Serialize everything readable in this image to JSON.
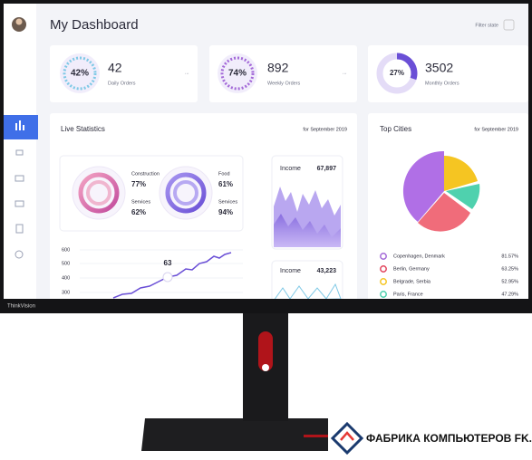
{
  "brand": "ThinkVision",
  "watermark": "ФАБРИКА КОМПЬЮТЕРОВ FK.BY",
  "header": {
    "title": "My Dashboard",
    "filter": "Filter state"
  },
  "cards": [
    {
      "percent": "42%",
      "value": "42",
      "label": "Daily Orders",
      "menu": "..."
    },
    {
      "percent": "74%",
      "value": "892",
      "label": "Weekly Orders",
      "menu": "..."
    },
    {
      "percent": "27%",
      "value": "3502",
      "label": "Monthly Orders"
    }
  ],
  "live_statistics": {
    "title": "Live Statistics",
    "period": "for September 2019",
    "rings": [
      {
        "items": [
          {
            "label": "Construction",
            "value": "77%"
          },
          {
            "label": "Services",
            "value": "62%"
          }
        ]
      },
      {
        "items": [
          {
            "label": "Food",
            "value": "61%"
          },
          {
            "label": "Services",
            "value": "94%"
          }
        ]
      }
    ],
    "line_chart": {
      "yticks": [
        "600",
        "500",
        "400",
        "300"
      ],
      "point_label": "63"
    },
    "income": [
      {
        "label": "Income",
        "value": "67,897"
      },
      {
        "label": "Income",
        "value": "43,223"
      }
    ]
  },
  "top_cities": {
    "title": "Top Cities",
    "period": "for September 2019",
    "cities": [
      {
        "name": "Copenhagen, Denmark",
        "value": "81.57%"
      },
      {
        "name": "Berlin, Germany",
        "value": "63.25%"
      },
      {
        "name": "Belgrade, Serbia",
        "value": "52.95%"
      },
      {
        "name": "Paris, France",
        "value": "47.29%"
      }
    ]
  }
}
